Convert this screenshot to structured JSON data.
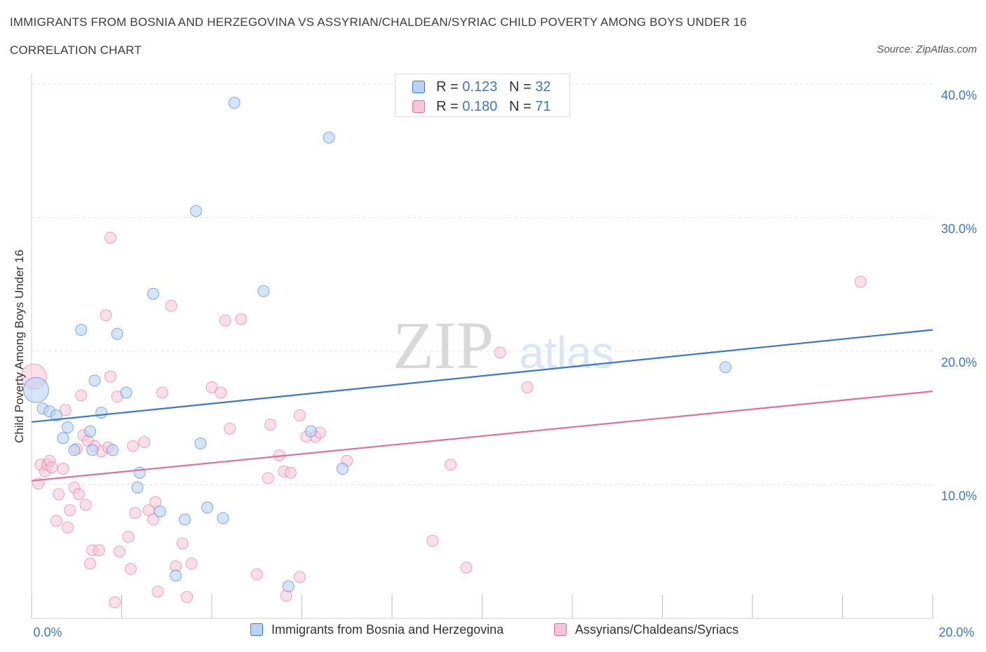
{
  "title": "IMMIGRANTS FROM BOSNIA AND HERZEGOVINA VS ASSYRIAN/CHALDEAN/SYRIAC CHILD POVERTY AMONG BOYS UNDER 16",
  "subtitle": "CORRELATION CHART",
  "source": "Source: ZipAtlas.com",
  "watermark": {
    "zip": "ZIP",
    "atlas": "atlas"
  },
  "colors": {
    "blue": "#3a78d0",
    "pink": "#e07098",
    "blue_fill": "#b9d3f5",
    "pink_fill": "#f7c5d6"
  },
  "legend_top": {
    "series1": {
      "r_label": "R = ",
      "r_value": "0.123",
      "n_label": "N = ",
      "n_value": "32"
    },
    "series2": {
      "r_label": "R = ",
      "r_value": "0.180",
      "n_label": "N = ",
      "n_value": "71"
    }
  },
  "chart_data": {
    "type": "scatter",
    "title": "IMMIGRANTS FROM BOSNIA AND HERZEGOVINA VS ASSYRIAN/CHALDEAN/SYRIAC CHILD POVERTY AMONG BOYS UNDER 16",
    "xlabel": "",
    "ylabel": "Child Poverty Among Boys Under 16",
    "xlim": [
      0,
      20
    ],
    "ylim": [
      0,
      40
    ],
    "x_tick_labels": [
      "0.0%",
      "20.0%"
    ],
    "y_ticks": [
      10,
      20,
      30,
      40
    ],
    "y_tick_labels": [
      "10.0%",
      "20.0%",
      "30.0%",
      "40.0%"
    ],
    "series": [
      {
        "name": "Immigrants from Bosnia and Herzegovina",
        "color": "#3a78d0",
        "points": [
          [
            0.1,
            17.1
          ],
          [
            0.25,
            15.7
          ],
          [
            0.4,
            15.5
          ],
          [
            0.55,
            15.2
          ],
          [
            0.7,
            13.5
          ],
          [
            0.8,
            14.3
          ],
          [
            0.95,
            12.6
          ],
          [
            1.1,
            21.6
          ],
          [
            1.3,
            14.0
          ],
          [
            1.4,
            17.8
          ],
          [
            1.35,
            12.6
          ],
          [
            1.55,
            15.4
          ],
          [
            1.9,
            21.3
          ],
          [
            1.8,
            12.6
          ],
          [
            2.1,
            16.9
          ],
          [
            2.35,
            9.8
          ],
          [
            2.4,
            10.9
          ],
          [
            2.7,
            24.3
          ],
          [
            2.85,
            8.0
          ],
          [
            3.2,
            3.2
          ],
          [
            3.4,
            7.4
          ],
          [
            3.65,
            30.5
          ],
          [
            3.75,
            13.1
          ],
          [
            3.9,
            8.3
          ],
          [
            4.25,
            7.5
          ],
          [
            4.5,
            38.6
          ],
          [
            5.15,
            24.5
          ],
          [
            5.7,
            2.4
          ],
          [
            6.2,
            14.0
          ],
          [
            6.6,
            36.0
          ],
          [
            6.9,
            11.2
          ],
          [
            15.4,
            18.8
          ]
        ]
      },
      {
        "name": "Assyrians/Chaldeans/Syriacs",
        "color": "#e07098",
        "points": [
          [
            0.05,
            18.1
          ],
          [
            0.15,
            10.1
          ],
          [
            0.2,
            11.5
          ],
          [
            0.3,
            11.0
          ],
          [
            0.35,
            11.5
          ],
          [
            0.4,
            11.8
          ],
          [
            0.45,
            11.3
          ],
          [
            0.55,
            7.3
          ],
          [
            0.6,
            9.3
          ],
          [
            0.7,
            11.2
          ],
          [
            0.75,
            15.6
          ],
          [
            0.8,
            6.8
          ],
          [
            0.85,
            8.1
          ],
          [
            0.95,
            9.8
          ],
          [
            1.0,
            12.7
          ],
          [
            1.05,
            9.3
          ],
          [
            1.1,
            16.7
          ],
          [
            1.15,
            13.7
          ],
          [
            1.2,
            8.5
          ],
          [
            1.25,
            13.3
          ],
          [
            1.3,
            4.1
          ],
          [
            1.35,
            5.1
          ],
          [
            1.4,
            12.9
          ],
          [
            1.5,
            5.1
          ],
          [
            1.55,
            12.5
          ],
          [
            1.65,
            22.7
          ],
          [
            1.7,
            12.8
          ],
          [
            1.75,
            18.1
          ],
          [
            1.75,
            28.5
          ],
          [
            1.85,
            1.2
          ],
          [
            1.9,
            16.6
          ],
          [
            1.95,
            5.0
          ],
          [
            2.15,
            6.1
          ],
          [
            2.2,
            3.7
          ],
          [
            2.25,
            12.9
          ],
          [
            2.3,
            7.9
          ],
          [
            2.5,
            13.2
          ],
          [
            2.6,
            8.1
          ],
          [
            2.7,
            7.4
          ],
          [
            2.75,
            8.7
          ],
          [
            2.8,
            2.0
          ],
          [
            2.9,
            16.9
          ],
          [
            3.1,
            23.4
          ],
          [
            3.2,
            3.9
          ],
          [
            3.35,
            5.6
          ],
          [
            3.45,
            1.6
          ],
          [
            3.55,
            4.1
          ],
          [
            4.0,
            17.3
          ],
          [
            4.2,
            16.9
          ],
          [
            4.3,
            22.3
          ],
          [
            4.4,
            14.2
          ],
          [
            4.65,
            22.4
          ],
          [
            5.0,
            3.3
          ],
          [
            5.25,
            10.5
          ],
          [
            5.3,
            14.5
          ],
          [
            5.5,
            12.2
          ],
          [
            5.6,
            11.0
          ],
          [
            5.65,
            1.7
          ],
          [
            5.75,
            10.9
          ],
          [
            5.95,
            3.1
          ],
          [
            5.95,
            15.2
          ],
          [
            6.1,
            13.6
          ],
          [
            6.3,
            13.6
          ],
          [
            6.4,
            13.9
          ],
          [
            7.0,
            11.8
          ],
          [
            8.9,
            5.8
          ],
          [
            9.3,
            11.5
          ],
          [
            9.65,
            3.8
          ],
          [
            10.4,
            19.9
          ],
          [
            11.0,
            17.3
          ],
          [
            18.4,
            25.2
          ]
        ]
      }
    ],
    "trend_lines": [
      {
        "series": "Immigrants from Bosnia and Herzegovina",
        "x": [
          0,
          20
        ],
        "y": [
          14.7,
          21.6
        ]
      },
      {
        "series": "Assyrians/Chaldeans/Syriacs",
        "x": [
          0,
          20
        ],
        "y": [
          10.3,
          17.0
        ]
      }
    ],
    "legend": [
      "Immigrants from Bosnia and Herzegovina",
      "Assyrians/Chaldeans/Syriacs"
    ]
  }
}
